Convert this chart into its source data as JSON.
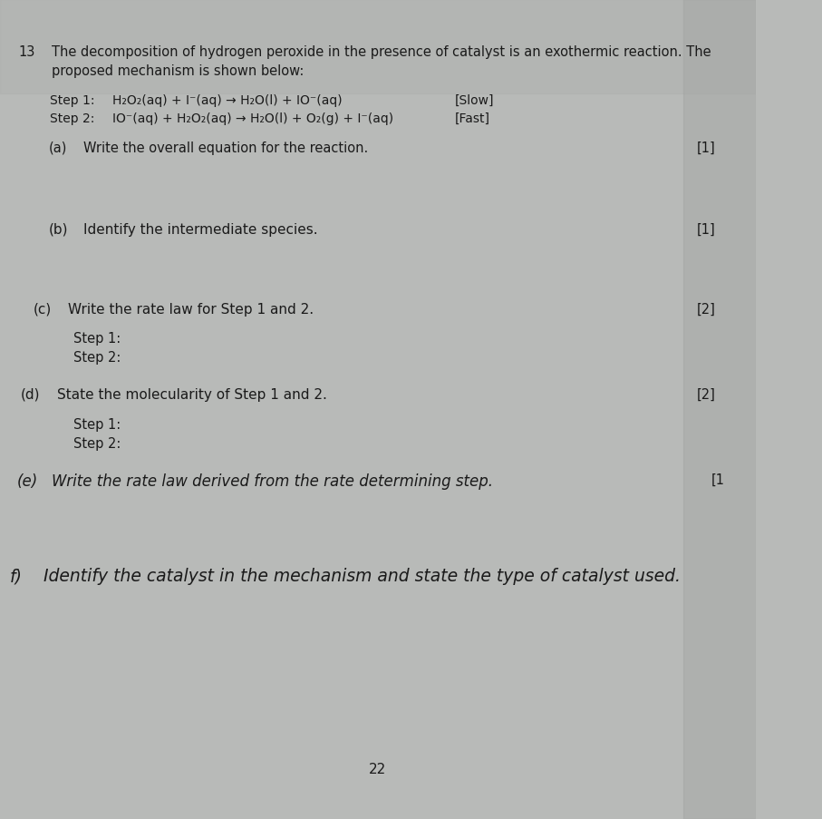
{
  "bg_color": "#b8bab8",
  "page_color": "#d0d2d0",
  "text_color": "#1a1a1a",
  "question_number": "13",
  "intro_line1": "The decomposition of hydrogen peroxide in the presence of catalyst is an exothermic reaction. The",
  "intro_line2": "proposed mechanism is shown below:",
  "step1_label": "Step 1:",
  "step1_eq": "H₂O₂(aq) + I⁻(aq) → H₂O(l) + IO⁻(aq)",
  "step1_rate": "[Slow]",
  "step2_label": "Step 2:",
  "step2_eq": "IO⁻(aq) + H₂O₂(aq) → H₂O(l) + O₂(g) + I⁻(aq)",
  "step2_rate": "[Fast]",
  "qa_label": "(a)",
  "qa_text": "Write the overall equation for the reaction.",
  "qa_mark": "[1]",
  "qb_label": "(b)",
  "qb_text": "Identify the intermediate species.",
  "qb_mark": "[1]",
  "qc_label": "(c)",
  "qc_text": "Write the rate law for Step 1 and 2.",
  "qc_mark": "[2]",
  "qc_step1": "Step 1:",
  "qc_step2": "Step 2:",
  "qd_label": "(d)",
  "qd_text": "State the molecularity of Step 1 and 2.",
  "qd_mark": "[2]",
  "qd_step1": "Step 1:",
  "qd_step2": "Step 2:",
  "qe_label": "(e)",
  "qe_text": "Write the rate law derived from the rate determining step.",
  "qe_mark": "[1",
  "qf_label": "f)",
  "qf_text": "Identify the catalyst in the mechanism and state the type of catalyst used.",
  "page_number": "22",
  "top_margin_color": "#a0a2a0",
  "right_margin_color": "#b0b2b0"
}
